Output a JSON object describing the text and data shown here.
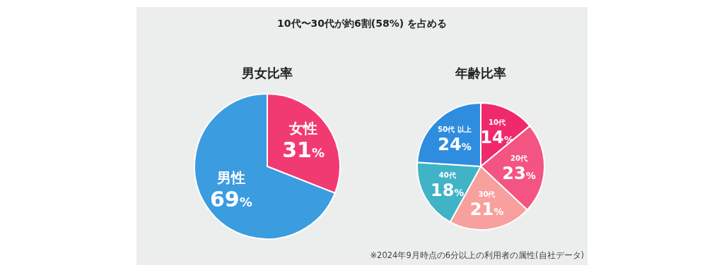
{
  "chart_data": [
    {
      "type": "pie",
      "title": "10代〜30代が約6割(58%) を占める",
      "subtitle": "男女比率",
      "categories": [
        "女性",
        "男性"
      ],
      "values": [
        31,
        69
      ],
      "value_labels": [
        "31%",
        "69%"
      ],
      "colors": [
        "#f23a72",
        "#3c9ce0"
      ]
    },
    {
      "type": "pie",
      "title": "年齢比率",
      "categories": [
        "10代",
        "20代",
        "30代",
        "40代",
        "50代 以上"
      ],
      "values": [
        14,
        23,
        21,
        18,
        24
      ],
      "value_labels": [
        "14%",
        "23%",
        "21%",
        "18%",
        "24%"
      ],
      "colors": [
        "#f0286c",
        "#f45482",
        "#f7a09e",
        "#40b3c6",
        "#2f8de0"
      ],
      "annotations": [
        "※2024年9月時点の6分以上の利用者の属性(自社データ)"
      ]
    }
  ]
}
